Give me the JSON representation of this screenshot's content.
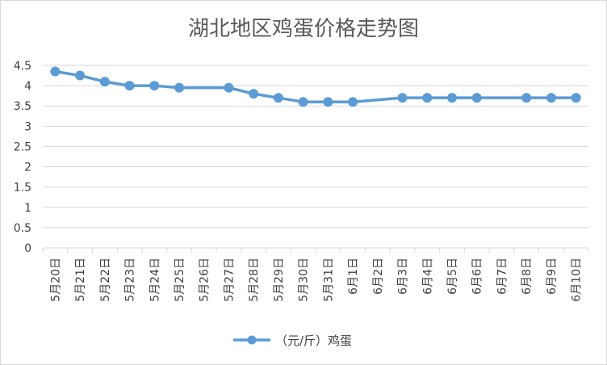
{
  "chart_data": {
    "type": "line",
    "title": "湖北地区鸡蛋价格走势图",
    "xlabel": "",
    "ylabel": "",
    "categories": [
      "5月20日",
      "5月21日",
      "5月22日",
      "5月23日",
      "5月24日",
      "5月25日",
      "5月26日",
      "5月27日",
      "5月28日",
      "5月29日",
      "5月30日",
      "5月31日",
      "6月1日",
      "6月2日",
      "6月3日",
      "6月4日",
      "6月5日",
      "6月6日",
      "6月7日",
      "6月8日",
      "6月9日",
      "6月10日"
    ],
    "series": [
      {
        "name": "（元/斤）鸡蛋",
        "values": [
          4.35,
          4.25,
          4.1,
          4.0,
          4.0,
          3.95,
          null,
          3.95,
          3.8,
          3.7,
          3.6,
          3.6,
          3.6,
          null,
          3.7,
          3.7,
          3.7,
          3.7,
          null,
          3.7,
          3.7,
          3.7
        ],
        "color": "#5b9bd5"
      }
    ],
    "ylim": [
      0,
      4.5
    ],
    "yticks": [
      "0",
      "0.5",
      "1",
      "1.5",
      "2",
      "2.5",
      "3",
      "3.5",
      "4",
      "4.5"
    ],
    "grid": "horizontal",
    "legend_position": "bottom",
    "gaps_connected": true
  }
}
